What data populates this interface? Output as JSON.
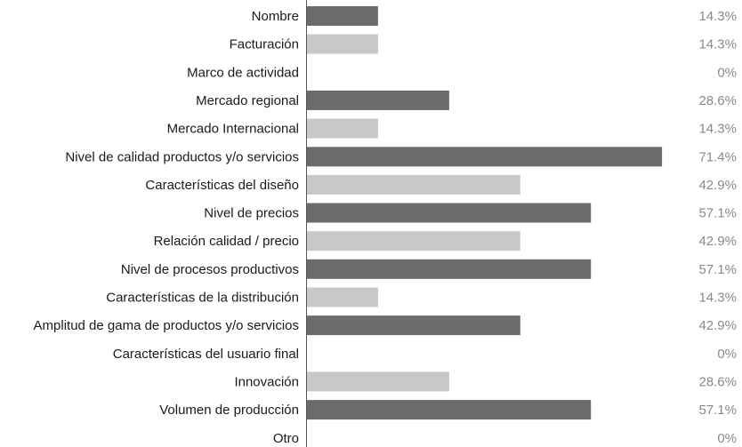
{
  "chart_data": {
    "type": "bar",
    "orientation": "horizontal",
    "title": "",
    "xlabel": "",
    "ylabel": "",
    "xlim": [
      0,
      100
    ],
    "grid": false,
    "legend": "none",
    "value_suffix": "%",
    "colors": {
      "dark": "#6b6b6b",
      "light": "#c8c8c8",
      "axis": "#555555",
      "value_text": "#8a8a8a"
    },
    "categories": [
      "Nombre",
      "Facturación",
      "Marco de actividad",
      "Mercado regional",
      "Mercado Internacional",
      "Nivel de calidad productos y/o servicios",
      "Características del diseño",
      "Nivel de precios",
      "Relación calidad / precio",
      "Nivel de procesos productivos",
      "Características de la distribución",
      "Amplitud de gama de productos y/o servicios",
      "Características del usuario final",
      "Innovación",
      "Volumen de producción",
      "Otro"
    ],
    "values": [
      14.3,
      14.3,
      0,
      28.6,
      14.3,
      71.4,
      42.9,
      57.1,
      42.9,
      57.1,
      14.3,
      42.9,
      0,
      28.6,
      57.1,
      0
    ],
    "value_labels": [
      "14.3%",
      "14.3%",
      "0%",
      "28.6%",
      "14.3%",
      "71.4%",
      "42.9%",
      "57.1%",
      "42.9%",
      "57.1%",
      "14.3%",
      "42.9%",
      "0%",
      "28.6%",
      "57.1%",
      "0%"
    ],
    "shades": [
      "dark",
      "light",
      "dark",
      "dark",
      "light",
      "dark",
      "light",
      "dark",
      "light",
      "dark",
      "light",
      "dark",
      "light",
      "light",
      "dark",
      "light"
    ]
  }
}
